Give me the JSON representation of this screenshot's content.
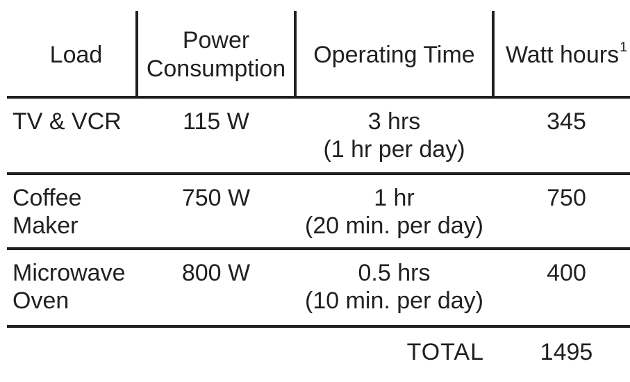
{
  "chart_data": {
    "type": "table",
    "columns": [
      "Load",
      "Power Consumption",
      "Operating Time",
      "Watt hours¹"
    ],
    "rows": [
      [
        "TV & VCR",
        "115 W",
        "3 hrs (1 hr per day)",
        "345"
      ],
      [
        "Coffee Maker",
        "750 W",
        "1 hr (20 min. per day)",
        "750"
      ],
      [
        "Microwave Oven",
        "800 W",
        "0.5 hrs (10 min. per day)",
        "400"
      ]
    ],
    "total_label": "TOTAL",
    "total_value": "1495",
    "footnote_marker": "1",
    "layout_hints": "header separated by vertical dividers; thick horizontal rules between rows; total row has no bottom rule"
  },
  "table": {
    "header": {
      "load": "Load",
      "power": "Power Consumption",
      "time": "Operating Time",
      "watt": "Watt hours",
      "watt_superscript": "1"
    },
    "rows": [
      {
        "load": "TV & VCR",
        "power": "115 W",
        "time": "3 hrs",
        "time_note": "(1 hr per day)",
        "watt": "345"
      },
      {
        "load": "Coffee Maker",
        "power": "750 W",
        "time": "1 hr",
        "time_note": "(20 min. per day)",
        "watt": "750"
      },
      {
        "load": "Microwave Oven",
        "power": "800 W",
        "time": "0.5 hrs",
        "time_note": "(10 min. per day)",
        "watt": "400"
      }
    ],
    "total": {
      "label": "TOTAL",
      "value": "1495"
    }
  },
  "colors": {
    "text": "#231f20",
    "line": "#231f20",
    "background": "#ffffff"
  }
}
